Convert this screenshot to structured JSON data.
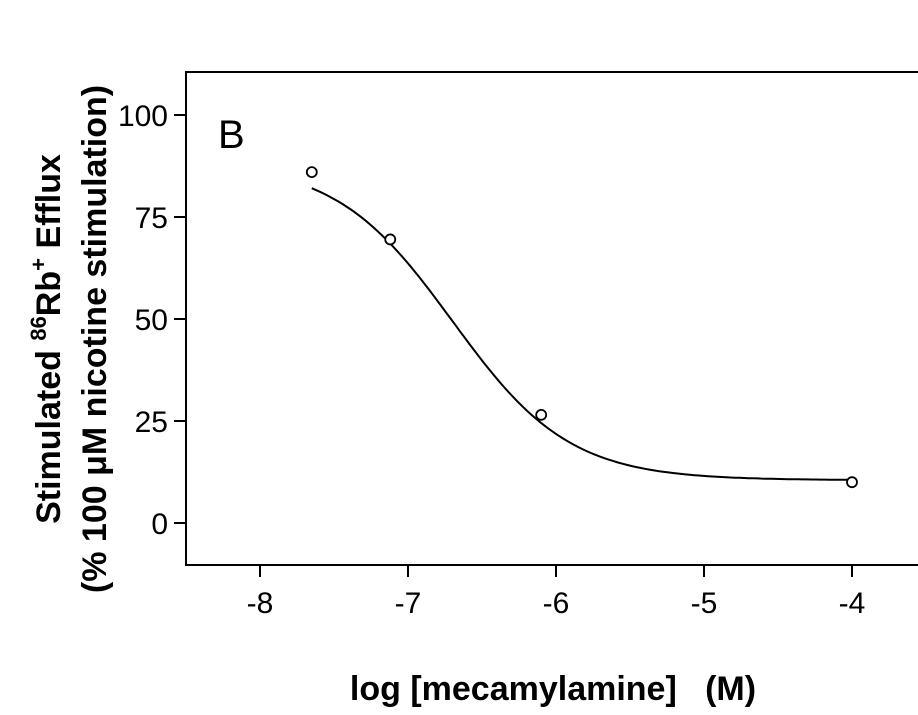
{
  "chart_data": {
    "type": "line",
    "panel_label": "B",
    "xlabel": "log [mecamylamine]   (M)",
    "ylabel_line1_pre": "Stimulated ",
    "ylabel_line1_sup1": "86",
    "ylabel_line1_mid": "Rb",
    "ylabel_line1_sup2": "+",
    "ylabel_line1_post": " Efflux",
    "ylabel_line2": "(% 100 μM nicotine stimulation)",
    "xlim": [
      -8.4,
      -3.6
    ],
    "ylim": [
      -10,
      110
    ],
    "xticks": [
      -8,
      -7,
      -6,
      -5,
      -4
    ],
    "xtick_labels": [
      "-8",
      "-7",
      "-6",
      "-5",
      "-4"
    ],
    "yticks": [
      0,
      25,
      50,
      75,
      100
    ],
    "ytick_labels": [
      "0",
      "25",
      "50",
      "75",
      "100"
    ],
    "grid": false,
    "series": [
      {
        "x": [
          -7.65,
          -7.12,
          -6.1,
          -4.0
        ],
        "y": [
          86,
          69.5,
          26.5,
          10
        ],
        "marker": "open-circle",
        "fit": "sigmoid"
      }
    ],
    "fit_params": {
      "top": 88.5,
      "bottom": 10.5,
      "log_ic50": -6.7,
      "hill_slope": -1.1
    }
  }
}
